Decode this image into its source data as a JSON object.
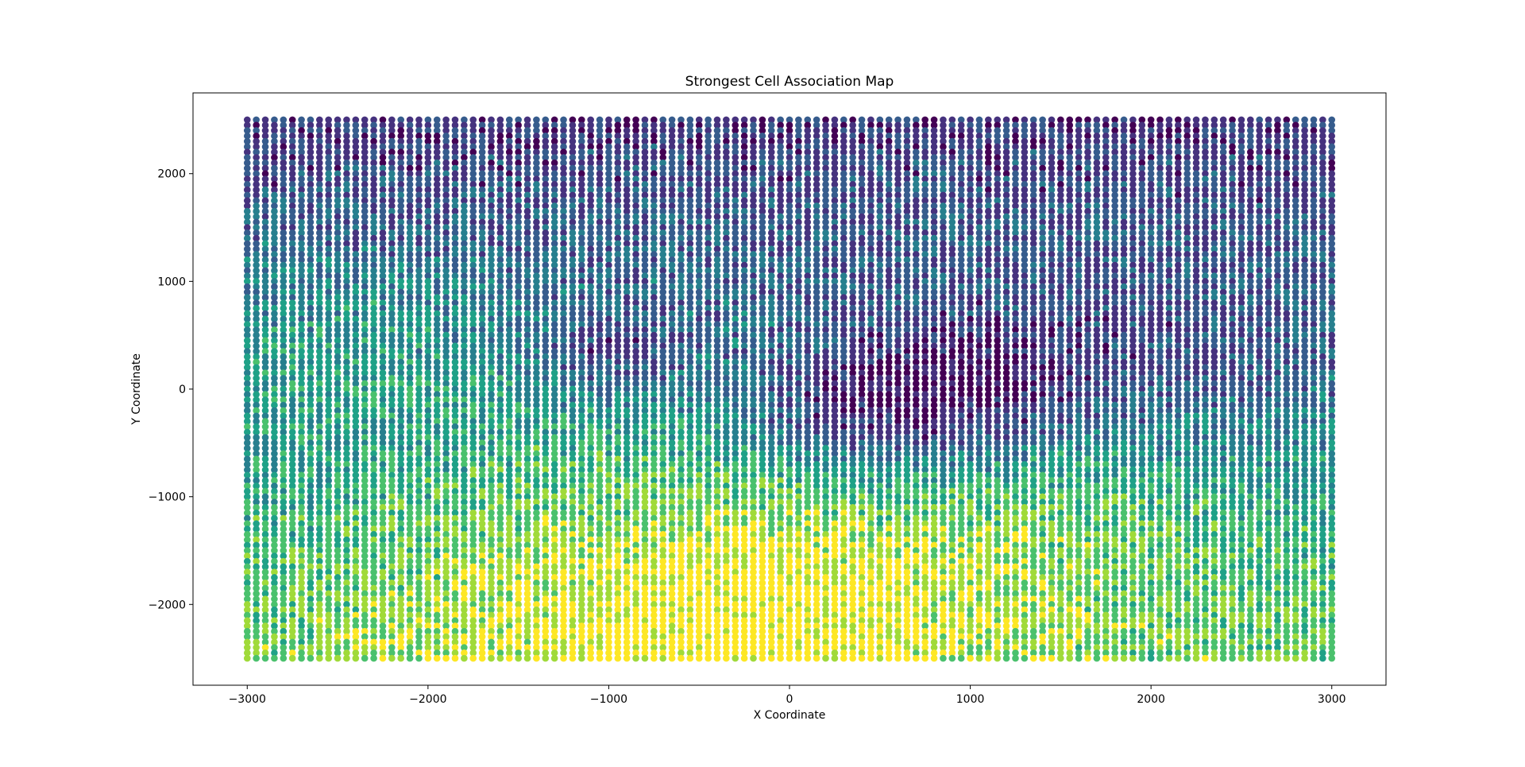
{
  "chart_data": {
    "type": "scatter",
    "title": "Strongest Cell Association Map",
    "xlabel": "X Coordinate",
    "ylabel": "Y Coordinate",
    "xlim": [
      -3300,
      3300
    ],
    "ylim": [
      -2750,
      2750
    ],
    "xticks": [
      -3000,
      -2000,
      -1000,
      0,
      1000,
      2000,
      3000
    ],
    "xtick_labels": [
      "−3000",
      "−2000",
      "−1000",
      "0",
      "1000",
      "2000",
      "3000"
    ],
    "yticks": [
      -2000,
      -1000,
      0,
      1000,
      2000
    ],
    "ytick_labels": [
      "−2000",
      "−1000",
      "0",
      "1000",
      "2000"
    ],
    "grid": false,
    "colormap": "viridis",
    "grid_points": {
      "x_start": -3000,
      "x_end": 3000,
      "x_step": 50,
      "y_start": -2500,
      "y_end": 2500,
      "y_step": 50
    },
    "category_colors": [
      "#440154",
      "#46327e",
      "#365c8d",
      "#277f8e",
      "#1fa187",
      "#4ac16d",
      "#a0da39",
      "#fde725"
    ],
    "region_summary": [
      {
        "area": "top",
        "dominant": [
          "#277f8e",
          "#365c8d"
        ]
      },
      {
        "area": "center-right",
        "dominant": [
          "#440154",
          "#46327e"
        ]
      },
      {
        "area": "lower-left",
        "dominant": [
          "#4ac16d",
          "#a0da39"
        ]
      },
      {
        "area": "bottom-center",
        "dominant": [
          "#fde725",
          "#a0da39"
        ]
      },
      {
        "area": "right-edge",
        "dominant": [
          "#1fa187",
          "#46327e"
        ]
      }
    ]
  }
}
